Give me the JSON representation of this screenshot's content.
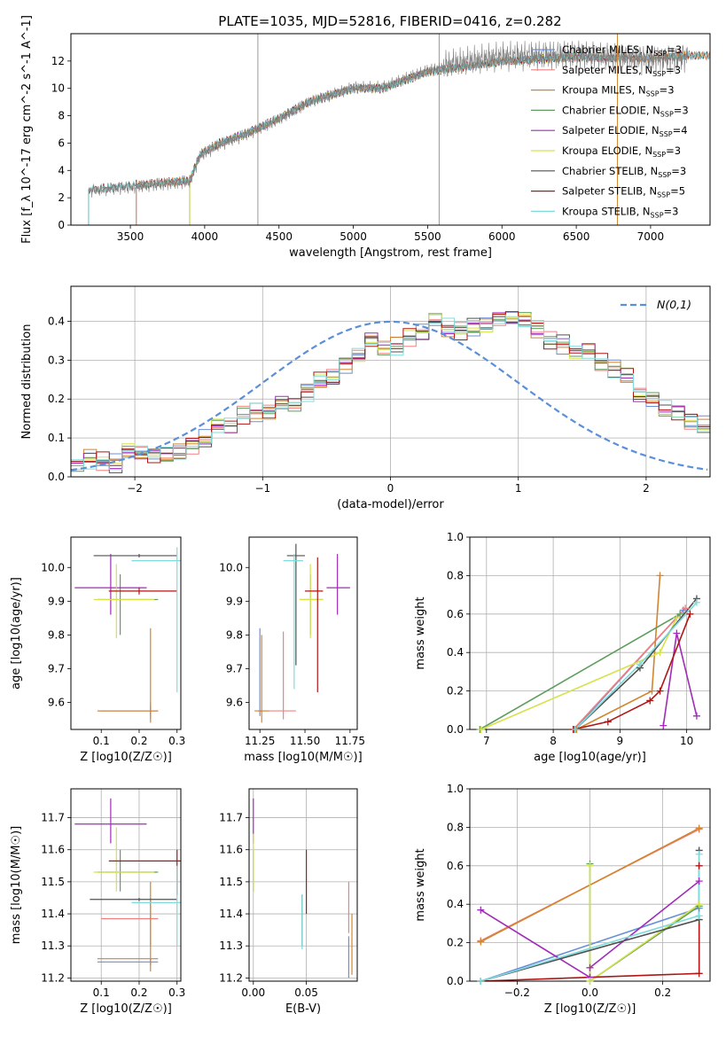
{
  "figure": {
    "title": "PLATE=1035, MJD=52816, FIBERID=0416, z=0.282"
  },
  "colors": {
    "Chabrier MILES": "#6a8fd8",
    "Salpeter MILES": "#f08080",
    "Kroupa MILES": "#d2852f",
    "Chabrier ELODIE": "#5f9e5f",
    "Salpeter ELODIE": "#a02cb8",
    "Kroupa ELODIE": "#d6e24a",
    "Chabrier STELIB": "#505050",
    "Salpeter STELIB": "#b01515",
    "Kroupa STELIB": "#80dcdc",
    "normal": "#5b8fd8",
    "data": "#808080"
  },
  "chart_data": [
    {
      "id": "spectrum",
      "type": "line",
      "xlabel": "wavelength [Angstrom, rest frame]",
      "ylabel": "Flux [f_λ 10^-17 erg cm^-2 s^-1 A^-1]",
      "xlim": [
        3100,
        7400
      ],
      "ylim": [
        0,
        14
      ],
      "xticks": [
        3500,
        4000,
        4500,
        5000,
        5500,
        6000,
        6500,
        7000
      ],
      "yticks": [
        0,
        2,
        4,
        6,
        8,
        10,
        12
      ],
      "grid": false,
      "legend_position": "top-right",
      "series": [
        {
          "name": "Chabrier MILES",
          "nssp": "3",
          "color_key": "Chabrier MILES",
          "x_range": [
            3540,
            7400
          ]
        },
        {
          "name": "Salpeter MILES",
          "nssp": "3",
          "color_key": "Salpeter MILES",
          "x_range": [
            3540,
            7400
          ]
        },
        {
          "name": "Kroupa MILES",
          "nssp": "3",
          "color_key": "Kroupa MILES",
          "x_range": [
            3540,
            7400
          ]
        },
        {
          "name": "Chabrier ELODIE",
          "nssp": "3",
          "color_key": "Chabrier ELODIE",
          "x_range": [
            3900,
            6800
          ]
        },
        {
          "name": "Salpeter ELODIE",
          "nssp": "4",
          "color_key": "Salpeter ELODIE",
          "x_range": [
            3900,
            6800
          ]
        },
        {
          "name": "Kroupa ELODIE",
          "nssp": "3",
          "color_key": "Kroupa ELODIE",
          "x_range": [
            3900,
            6800
          ]
        },
        {
          "name": "Chabrier STELIB",
          "nssp": "3",
          "color_key": "Chabrier STELIB",
          "x_range": [
            3220,
            7400
          ]
        },
        {
          "name": "Salpeter STELIB",
          "nssp": "5",
          "color_key": "Salpeter STELIB",
          "x_range": [
            3220,
            7400
          ]
        },
        {
          "name": "Kroupa STELIB",
          "nssp": "3",
          "color_key": "Kroupa STELIB",
          "x_range": [
            3220,
            7400
          ]
        }
      ],
      "data_x_range": [
        3220,
        7250
      ],
      "continuum_knots": {
        "x": [
          3220,
          3400,
          3700,
          3900,
          3970,
          4100,
          4300,
          4500,
          4700,
          5000,
          5200,
          5500,
          6000,
          6500,
          7000,
          7250
        ],
        "y": [
          2.6,
          2.8,
          3.1,
          3.3,
          5.2,
          6.0,
          6.8,
          7.8,
          9.0,
          10.0,
          10.0,
          11.2,
          12.0,
          12.3,
          12.2,
          12.4
        ]
      }
    },
    {
      "id": "residuals",
      "type": "bar",
      "xlabel": "(data-model)/error",
      "ylabel": "Normed distribution",
      "xlim": [
        -2.5,
        2.5
      ],
      "ylim": [
        0,
        0.49
      ],
      "xticks": [
        -2,
        -1,
        0,
        1,
        2
      ],
      "yticks": [
        0.0,
        0.1,
        0.2,
        0.3,
        0.4
      ],
      "grid": true,
      "legend_position": "top-right",
      "legend_label": "N(0,1)",
      "bin_width": 0.1,
      "bin_start": -2.5,
      "histogram_values": [
        0.04,
        0.045,
        0.04,
        0.035,
        0.06,
        0.065,
        0.05,
        0.055,
        0.06,
        0.075,
        0.095,
        0.12,
        0.13,
        0.15,
        0.16,
        0.165,
        0.175,
        0.185,
        0.21,
        0.24,
        0.25,
        0.28,
        0.31,
        0.34,
        0.33,
        0.33,
        0.35,
        0.37,
        0.39,
        0.38,
        0.37,
        0.38,
        0.39,
        0.4,
        0.41,
        0.4,
        0.38,
        0.35,
        0.34,
        0.33,
        0.32,
        0.3,
        0.28,
        0.26,
        0.22,
        0.2,
        0.18,
        0.17,
        0.15,
        0.14
      ]
    },
    {
      "id": "age-vs-Z",
      "type": "scatter",
      "xlabel": "Z [log10(Z/Z☉)]",
      "ylabel": "age [log10(age/yr)]",
      "xlim": [
        0.02,
        0.31
      ],
      "ylim": [
        9.52,
        10.09
      ],
      "xticks": [
        0.1,
        0.2,
        0.3
      ],
      "yticks": [
        9.6,
        9.7,
        9.8,
        9.9,
        10.0
      ],
      "grid": false,
      "points": [
        {
          "series": "Chabrier MILES",
          "x": 0.23,
          "y": 9.575,
          "xerr": [
            0.09,
            0.25
          ],
          "yerr": [
            9.56,
            9.59
          ]
        },
        {
          "series": "Salpeter MILES",
          "x": 0.23,
          "y": 9.575,
          "xerr": [
            0.1,
            0.25
          ],
          "yerr": [
            9.55,
            9.6
          ]
        },
        {
          "series": "Kroupa MILES",
          "x": 0.23,
          "y": 9.575,
          "xerr": [
            0.09,
            0.25
          ],
          "yerr": [
            9.54,
            9.82
          ]
        },
        {
          "series": "Chabrier ELODIE",
          "x": 0.15,
          "y": 9.905,
          "xerr": [
            0.09,
            0.25
          ],
          "yerr": [
            9.8,
            9.98
          ]
        },
        {
          "series": "Salpeter ELODIE",
          "x": 0.125,
          "y": 9.94,
          "xerr": [
            0.03,
            0.22
          ],
          "yerr": [
            9.86,
            10.04
          ]
        },
        {
          "series": "Kroupa ELODIE",
          "x": 0.14,
          "y": 9.905,
          "xerr": [
            0.08,
            0.24
          ],
          "yerr": [
            9.79,
            10.01
          ]
        },
        {
          "series": "Chabrier STELIB",
          "x": 0.2,
          "y": 10.035,
          "xerr": [
            0.08,
            0.3
          ],
          "yerr": [
            10.03,
            10.04
          ]
        },
        {
          "series": "Salpeter STELIB",
          "x": 0.2,
          "y": 9.93,
          "xerr": [
            0.12,
            0.3
          ],
          "yerr": [
            9.92,
            9.94
          ]
        },
        {
          "series": "Kroupa STELIB",
          "x": 0.3,
          "y": 10.02,
          "xerr": [
            0.18,
            0.31
          ],
          "yerr": [
            9.63,
            10.06
          ]
        }
      ]
    },
    {
      "id": "age-vs-mass",
      "type": "scatter",
      "xlabel": "mass [log10(M/M☉)]",
      "ylabel": "",
      "xlim": [
        11.19,
        11.79
      ],
      "ylim": [
        9.52,
        10.09
      ],
      "xticks": [
        11.25,
        11.5,
        11.75
      ],
      "yticks": [
        9.6,
        9.7,
        9.8,
        9.9,
        10.0
      ],
      "grid": false,
      "points": [
        {
          "series": "Chabrier MILES",
          "x": 11.25,
          "y": 9.575,
          "xerr": [
            11.24,
            11.26
          ],
          "yerr": [
            9.56,
            9.82
          ]
        },
        {
          "series": "Salpeter MILES",
          "x": 11.38,
          "y": 9.575,
          "xerr": [
            11.24,
            11.45
          ],
          "yerr": [
            9.55,
            9.81
          ]
        },
        {
          "series": "Kroupa MILES",
          "x": 11.26,
          "y": 9.575,
          "xerr": [
            11.22,
            11.3
          ],
          "yerr": [
            9.54,
            9.8
          ]
        },
        {
          "series": "Chabrier ELODIE",
          "x": 11.53,
          "y": 9.905,
          "xerr": [
            11.47,
            11.6
          ],
          "yerr": [
            9.8,
            9.98
          ]
        },
        {
          "series": "Salpeter ELODIE",
          "x": 11.68,
          "y": 9.94,
          "xerr": [
            11.62,
            11.75
          ],
          "yerr": [
            9.86,
            10.04
          ]
        },
        {
          "series": "Kroupa ELODIE",
          "x": 11.53,
          "y": 9.905,
          "xerr": [
            11.47,
            11.6
          ],
          "yerr": [
            9.79,
            10.01
          ]
        },
        {
          "series": "Chabrier STELIB",
          "x": 11.45,
          "y": 10.035,
          "xerr": [
            11.4,
            11.5
          ],
          "yerr": [
            9.71,
            10.07
          ]
        },
        {
          "series": "Salpeter STELIB",
          "x": 11.57,
          "y": 9.93,
          "xerr": [
            11.5,
            11.6
          ],
          "yerr": [
            9.63,
            10.03
          ]
        },
        {
          "series": "Kroupa STELIB",
          "x": 11.44,
          "y": 10.02,
          "xerr": [
            11.38,
            11.49
          ],
          "yerr": [
            9.64,
            10.04
          ]
        }
      ]
    },
    {
      "id": "weight-vs-age",
      "type": "line",
      "xlabel": "age [log10(age/yr)]",
      "ylabel": "mass weight",
      "xlim": [
        6.75,
        10.35
      ],
      "ylim": [
        0,
        1
      ],
      "xticks": [
        7,
        8,
        9,
        10
      ],
      "yticks": [
        0.0,
        0.2,
        0.4,
        0.6,
        0.8,
        1.0
      ],
      "grid": true,
      "series": [
        {
          "name": "Chabrier MILES",
          "x": [
            8.32,
            9.95
          ],
          "y": [
            0.0,
            0.62
          ]
        },
        {
          "name": "Salpeter MILES",
          "x": [
            8.3,
            9.98
          ],
          "y": [
            0.0,
            0.63
          ]
        },
        {
          "name": "Kroupa MILES",
          "x": [
            8.35,
            9.48,
            9.6
          ],
          "y": [
            0.0,
            0.2,
            0.8
          ]
        },
        {
          "name": "Chabrier ELODIE",
          "x": [
            6.9,
            9.9
          ],
          "y": [
            0.0,
            0.6
          ]
        },
        {
          "name": "Salpeter ELODIE",
          "x": [
            9.65,
            9.85,
            10.15
          ],
          "y": [
            0.02,
            0.5,
            0.07
          ]
        },
        {
          "name": "Kroupa ELODIE",
          "x": [
            6.92,
            9.6,
            9.85
          ],
          "y": [
            0.0,
            0.4,
            0.58
          ]
        },
        {
          "name": "Chabrier STELIB",
          "x": [
            8.33,
            9.3,
            10.15
          ],
          "y": [
            0.0,
            0.32,
            0.68
          ]
        },
        {
          "name": "Salpeter STELIB",
          "x": [
            8.3,
            8.82,
            9.45,
            9.6,
            10.05
          ],
          "y": [
            0.0,
            0.04,
            0.15,
            0.2,
            0.6
          ]
        },
        {
          "name": "Kroupa STELIB",
          "x": [
            8.33,
            9.3,
            10.15
          ],
          "y": [
            0.0,
            0.34,
            0.66
          ]
        }
      ]
    },
    {
      "id": "mass-vs-Z",
      "type": "scatter",
      "xlabel": "Z [log10(Z/Z☉)]",
      "ylabel": "mass [log10(M/M☉)]",
      "xlim": [
        0.02,
        0.31
      ],
      "ylim": [
        11.19,
        11.79
      ],
      "xticks": [
        0.1,
        0.2,
        0.3
      ],
      "yticks": [
        11.2,
        11.3,
        11.4,
        11.5,
        11.6,
        11.7
      ],
      "grid": true,
      "points": [
        {
          "series": "Chabrier MILES",
          "x": 0.23,
          "y": 11.25,
          "xerr": [
            0.09,
            0.25
          ],
          "yerr": [
            11.24,
            11.26
          ]
        },
        {
          "series": "Salpeter MILES",
          "x": 0.23,
          "y": 11.385,
          "xerr": [
            0.1,
            0.25
          ],
          "yerr": [
            11.3,
            11.45
          ]
        },
        {
          "series": "Kroupa MILES",
          "x": 0.23,
          "y": 11.26,
          "xerr": [
            0.09,
            0.25
          ],
          "yerr": [
            11.22,
            11.5
          ]
        },
        {
          "series": "Chabrier ELODIE",
          "x": 0.15,
          "y": 11.53,
          "xerr": [
            0.09,
            0.25
          ],
          "yerr": [
            11.47,
            11.6
          ]
        },
        {
          "series": "Salpeter ELODIE",
          "x": 0.125,
          "y": 11.68,
          "xerr": [
            0.03,
            0.22
          ],
          "yerr": [
            11.62,
            11.76
          ]
        },
        {
          "series": "Kroupa ELODIE",
          "x": 0.14,
          "y": 11.53,
          "xerr": [
            0.08,
            0.24
          ],
          "yerr": [
            11.47,
            11.67
          ]
        },
        {
          "series": "Chabrier STELIB",
          "x": 0.2,
          "y": 11.445,
          "xerr": [
            0.07,
            0.3
          ],
          "yerr": [
            11.44,
            11.45
          ]
        },
        {
          "series": "Salpeter STELIB",
          "x": 0.3,
          "y": 11.565,
          "xerr": [
            0.12,
            0.31
          ],
          "yerr": [
            11.46,
            11.6
          ]
        },
        {
          "series": "Kroupa STELIB",
          "x": 0.3,
          "y": 11.435,
          "xerr": [
            0.18,
            0.31
          ],
          "yerr": [
            11.3,
            11.55
          ]
        }
      ]
    },
    {
      "id": "mass-vs-EBV",
      "type": "scatter",
      "xlabel": "E(B-V)",
      "ylabel": "",
      "xlim": [
        -0.004,
        0.098
      ],
      "ylim": [
        11.19,
        11.79
      ],
      "xticks": [
        0.0,
        0.05
      ],
      "yticks": [
        11.2,
        11.3,
        11.4,
        11.5,
        11.6,
        11.7
      ],
      "grid": true,
      "points": [
        {
          "series": "Chabrier MILES",
          "x": 0.09,
          "y": 11.25,
          "xerr": [
            0.09,
            0.09
          ],
          "yerr": [
            11.2,
            11.33
          ]
        },
        {
          "series": "Salpeter MILES",
          "x": 0.09,
          "y": 11.385,
          "xerr": [
            0.09,
            0.09
          ],
          "yerr": [
            11.34,
            11.5
          ]
        },
        {
          "series": "Kroupa MILES",
          "x": 0.093,
          "y": 11.26,
          "xerr": [
            0.093,
            0.093
          ],
          "yerr": [
            11.21,
            11.4
          ]
        },
        {
          "series": "Chabrier ELODIE",
          "x": 0.0,
          "y": 11.53,
          "xerr": [
            0.0,
            0.0
          ],
          "yerr": [
            11.47,
            11.6
          ]
        },
        {
          "series": "Salpeter ELODIE",
          "x": 0.0,
          "y": 11.68,
          "xerr": [
            0.0,
            0.0
          ],
          "yerr": [
            11.62,
            11.76
          ]
        },
        {
          "series": "Kroupa ELODIE",
          "x": 0.0,
          "y": 11.53,
          "xerr": [
            0.0,
            0.0
          ],
          "yerr": [
            11.47,
            11.65
          ]
        },
        {
          "series": "Chabrier STELIB",
          "x": 0.046,
          "y": 11.445,
          "xerr": [
            0.046,
            0.046
          ],
          "yerr": [
            11.3,
            11.46
          ]
        },
        {
          "series": "Salpeter STELIB",
          "x": 0.05,
          "y": 11.565,
          "xerr": [
            0.05,
            0.05
          ],
          "yerr": [
            11.4,
            11.6
          ]
        },
        {
          "series": "Kroupa STELIB",
          "x": 0.046,
          "y": 11.435,
          "xerr": [
            0.046,
            0.046
          ],
          "yerr": [
            11.29,
            11.46
          ]
        }
      ]
    },
    {
      "id": "weight-vs-Z",
      "type": "line",
      "xlabel": "Z [log10(Z/Z☉)]",
      "ylabel": "mass weight",
      "xlim": [
        -0.33,
        0.33
      ],
      "ylim": [
        0,
        1
      ],
      "xticks": [
        -0.2,
        0.0,
        0.2
      ],
      "yticks": [
        0.0,
        0.2,
        0.4,
        0.6,
        0.8,
        1.0
      ],
      "grid": true,
      "series": [
        {
          "name": "Chabrier MILES",
          "x": [
            -0.3,
            0.3
          ],
          "y": [
            0.0,
            0.38
          ]
        },
        {
          "name": "Salpeter MILES",
          "x": [
            -0.3,
            0.3
          ],
          "y": [
            0.21,
            0.79
          ]
        },
        {
          "name": "Kroupa MILES",
          "x": [
            -0.3,
            0.3
          ],
          "y": [
            0.205,
            0.795
          ]
        },
        {
          "name": "Chabrier ELODIE",
          "x": [
            0.0,
            0.0,
            0.3
          ],
          "y": [
            0.61,
            0.0,
            0.39
          ]
        },
        {
          "name": "Salpeter ELODIE",
          "x": [
            -0.3,
            0.0,
            0.0,
            0.3
          ],
          "y": [
            0.37,
            0.02,
            0.07,
            0.52
          ]
        },
        {
          "name": "Kroupa ELODIE",
          "x": [
            0.0,
            0.0,
            0.3
          ],
          "y": [
            0.6,
            0.0,
            0.4
          ]
        },
        {
          "name": "Chabrier STELIB",
          "x": [
            -0.3,
            0.3,
            0.3
          ],
          "y": [
            0.0,
            0.32,
            0.68
          ]
        },
        {
          "name": "Salpeter STELIB",
          "x": [
            -0.3,
            0.3,
            0.3
          ],
          "y": [
            0.0,
            0.04,
            0.6
          ]
        },
        {
          "name": "Kroupa STELIB",
          "x": [
            -0.3,
            0.3,
            0.3
          ],
          "y": [
            0.0,
            0.34,
            0.66
          ]
        }
      ]
    }
  ]
}
